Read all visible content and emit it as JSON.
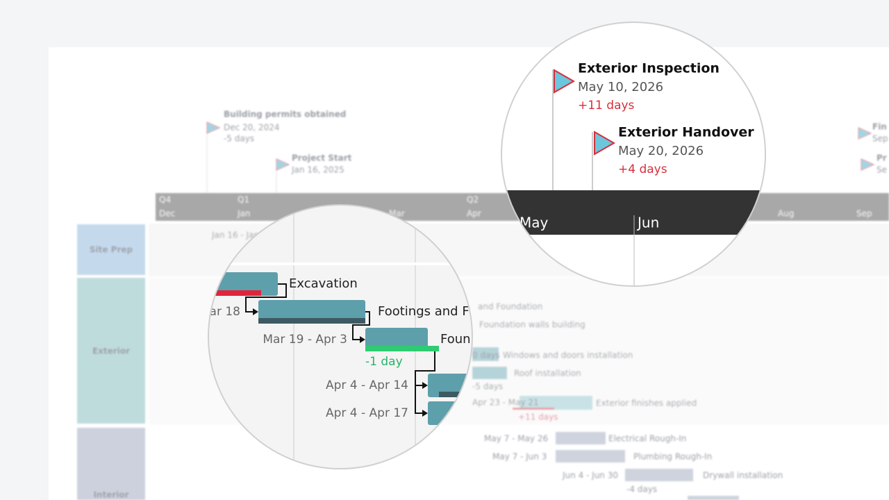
{
  "background": {
    "milestones": [
      {
        "title": "Building permits obtained",
        "date": "Dec 20, 2024",
        "variance": "-5 days"
      },
      {
        "title": "Project Start",
        "date": "Jan 16, 2025"
      }
    ],
    "edge_texts": [
      "Fin",
      "Sep",
      "Pr",
      "Se"
    ],
    "timeline": [
      "Q4",
      "Dec",
      "Q1",
      "Jan",
      "Mar",
      "Q2",
      "Apr",
      "Aug",
      "Sep"
    ],
    "groups": [
      "Site Prep",
      "Exterior",
      "Interior"
    ],
    "task_texts": [
      "Jan 16 - Jan",
      "and Foundation",
      "Foundation walls building",
      "0 days",
      "Windows and doors installation",
      "Roof installation",
      "-5 days",
      "Apr 23 - May 21",
      "Exterior finishes applied",
      "+11 days",
      "May 7 - May 26",
      "Electrical Rough-In",
      "May 7 - Jun 3",
      "Plumbing Rough-In",
      "Jun 4 - Jun 30",
      "Drywall installation",
      "-4 days"
    ]
  },
  "left_zoom": {
    "tasks": [
      "Excavation",
      "Footings and F",
      "Foun"
    ],
    "dates": [
      "ar 18",
      "Mar 19 - Apr 3",
      "Apr 4 - Apr 14",
      "Apr 4 - Apr 17"
    ],
    "variance": "-1 day"
  },
  "right_zoom": {
    "milestones": [
      {
        "title": "Exterior Inspection",
        "date": "May 10, 2026",
        "variance": "+11 days"
      },
      {
        "title": "Exterior Handover",
        "date": "May 20, 2026",
        "variance": "+4 days"
      }
    ],
    "months": [
      "May",
      "Jun"
    ]
  }
}
